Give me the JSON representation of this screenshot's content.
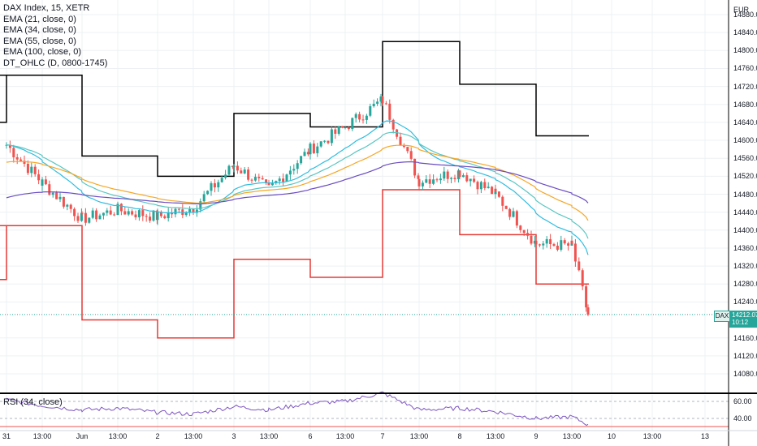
{
  "legend": {
    "title": "DAX Index, 15, XETR",
    "indicators": [
      "EMA (21, close, 0)",
      "EMA (34, close, 0)",
      "EMA (55, close, 0)",
      "EMA (100, close, 0)",
      "DT_OHLC (D, 0800-1745)"
    ]
  },
  "rsi_label": "RSI (34, close)",
  "price_axis": {
    "unit": "EUR",
    "ticks": [
      "14880.00",
      "14840.00",
      "14800.00",
      "14760.00",
      "14720.00",
      "14680.00",
      "14640.00",
      "14600.00",
      "14560.00",
      "14520.00",
      "14480.00",
      "14440.00",
      "14400.00",
      "14360.00",
      "14320.00",
      "14280.00",
      "14240.00",
      "14160.00",
      "14120.00",
      "14080.00"
    ]
  },
  "rsi_axis": {
    "ticks": [
      "60.00",
      "40.00"
    ]
  },
  "time_axis": {
    "ticks": [
      "31",
      "13:00",
      "Jun",
      "13:00",
      "2",
      "13:00",
      "3",
      "13:00",
      "6",
      "13:00",
      "7",
      "13:00",
      "8",
      "13:00",
      "9",
      "13:00",
      "10",
      "13:00",
      "13"
    ]
  },
  "last_price": {
    "symbol": "DAX",
    "price": "14212.07",
    "countdown": "10:12"
  },
  "colors": {
    "up": "#26a69a",
    "down": "#ef5350",
    "ema21": "#2fbde0",
    "ema34": "#5ac6c2",
    "ema55": "#f5a623",
    "ema100": "#6a4cc2",
    "daily_high": "#000000",
    "daily_low": "#e53935",
    "rsi": "#7e57c2",
    "grid": "#eef0f3"
  },
  "chart_data": {
    "type": "candlestick",
    "title": "DAX Index, 15, XETR",
    "currency": "EUR",
    "ylim": [
      14040,
      14900
    ],
    "x_labels": [
      "31",
      "13:00",
      "Jun",
      "13:00",
      "2",
      "13:00",
      "3",
      "13:00",
      "6",
      "13:00",
      "7",
      "13:00",
      "8",
      "13:00",
      "9",
      "13:00",
      "10",
      "13:00",
      "13"
    ],
    "daily_levels": [
      {
        "day": "31",
        "high": 14745,
        "low": 14410
      },
      {
        "day": "Jun",
        "high": 14565,
        "low": 14200
      },
      {
        "day": "2",
        "high": 14520,
        "low": 14160
      },
      {
        "day": "3",
        "high": 14660,
        "low": 14335
      },
      {
        "day": "6",
        "high": 14630,
        "low": 14295
      },
      {
        "day": "7",
        "high": 14820,
        "low": 14490
      },
      {
        "day": "8",
        "high": 14725,
        "low": 14390
      },
      {
        "day": "9",
        "high": 14610,
        "low": 14280
      }
    ],
    "close_path": [
      {
        "x": "31",
        "close": 14590
      },
      {
        "x": "13:00",
        "close": 14505
      },
      {
        "x": "Jun",
        "close": 14425
      },
      {
        "x": "13:00",
        "close": 14445
      },
      {
        "x": "2",
        "close": 14430
      },
      {
        "x": "13:00",
        "close": 14450
      },
      {
        "x": "3",
        "close": 14545
      },
      {
        "x": "13:00",
        "close": 14490
      },
      {
        "x": "6",
        "close": 14580
      },
      {
        "x": "13:00",
        "close": 14630
      },
      {
        "x": "7",
        "close": 14690
      },
      {
        "x": "13:00",
        "close": 14510
      },
      {
        "x": "8",
        "close": 14530
      },
      {
        "x": "13:00",
        "close": 14480
      },
      {
        "x": "9",
        "close": 14370
      },
      {
        "x": "13:00",
        "close": 14365
      },
      {
        "x": "last",
        "close": 14212
      }
    ],
    "last_price": 14212.07,
    "rsi": {
      "name": "RSI (34, close)",
      "ylim": [
        25,
        75
      ],
      "levels": [
        60,
        40
      ],
      "values": [
        62,
        55,
        50,
        52,
        47,
        45,
        54,
        50,
        58,
        60,
        70,
        50,
        52,
        48,
        40,
        42,
        33
      ]
    }
  }
}
